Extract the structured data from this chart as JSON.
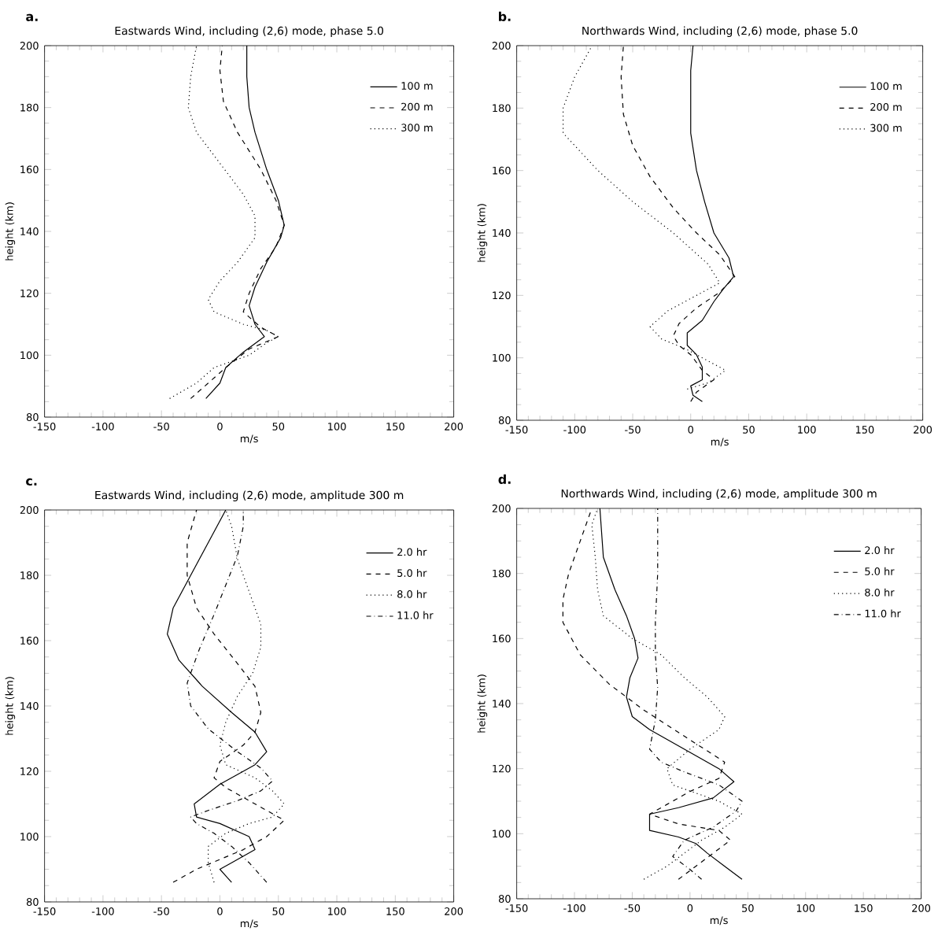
{
  "chart_data": [
    {
      "type": "line",
      "title": "Eastwards Wind, including (2,6) mode, phase 5.0",
      "xlabel": "m/s",
      "ylabel": "height (km)",
      "annotations": [
        "a."
      ],
      "xlim": [
        -150,
        200
      ],
      "ylim": [
        80,
        200
      ],
      "xticks": [
        -150,
        -100,
        -50,
        0,
        50,
        100,
        150,
        200
      ],
      "yticks": [
        80,
        100,
        120,
        140,
        160,
        180,
        200
      ],
      "legend": "top right",
      "marker": "none",
      "series": [
        {
          "name": "100 m",
          "color": "#000000",
          "line_style": "solid",
          "x": [
            -12,
            0,
            5,
            20,
            38,
            30,
            25,
            30,
            40,
            52,
            55,
            50,
            40,
            30,
            25,
            23,
            23
          ],
          "values": [
            86,
            91,
            96,
            101,
            106,
            110,
            116,
            122,
            130,
            138,
            142,
            150,
            160,
            172,
            180,
            190,
            200
          ]
        },
        {
          "name": "200 m",
          "color": "#000000",
          "line_style": "dashed",
          "x": [
            -25,
            -10,
            5,
            25,
            50,
            35,
            20,
            25,
            35,
            48,
            55,
            48,
            35,
            15,
            3,
            0,
            2
          ],
          "values": [
            86,
            91,
            96,
            102,
            106,
            109,
            114,
            120,
            128,
            135,
            142,
            150,
            160,
            172,
            182,
            192,
            200
          ]
        },
        {
          "name": "300 m",
          "color": "#000000",
          "line_style": "dotted",
          "x": [
            -43,
            -20,
            -5,
            25,
            40,
            50,
            40,
            20,
            -5,
            -10,
            0,
            15,
            30,
            30,
            20,
            0,
            -20,
            -27,
            -25,
            -20
          ],
          "values": [
            86,
            91,
            96,
            100,
            104,
            106,
            108,
            110,
            114,
            118,
            124,
            130,
            138,
            145,
            152,
            162,
            172,
            180,
            190,
            200
          ]
        }
      ]
    },
    {
      "type": "line",
      "title": "Northwards Wind, including (2,6) mode, phase 5.0",
      "xlabel": "m/s",
      "ylabel": "height (km)",
      "annotations": [
        "b."
      ],
      "xlim": [
        -150,
        200
      ],
      "ylim": [
        80,
        200
      ],
      "xticks": [
        -150,
        -100,
        -50,
        0,
        50,
        100,
        150,
        200
      ],
      "yticks": [
        80,
        100,
        120,
        140,
        160,
        180,
        200
      ],
      "legend": "top right",
      "marker": "none",
      "series": [
        {
          "name": "100 m",
          "color": "#000000",
          "line_style": "solid",
          "x": [
            10,
            2,
            0,
            10,
            10,
            5,
            -3,
            -3,
            10,
            20,
            28,
            37,
            33,
            20,
            12,
            5,
            0,
            0,
            2
          ],
          "values": [
            86,
            88,
            91,
            93,
            97,
            101,
            104,
            108,
            112,
            118,
            122,
            126,
            132,
            140,
            150,
            160,
            172,
            192,
            200
          ]
        },
        {
          "name": "200 m",
          "color": "#000000",
          "line_style": "dashed",
          "x": [
            0,
            5,
            20,
            10,
            0,
            -10,
            -15,
            -10,
            5,
            25,
            38,
            25,
            5,
            -15,
            -35,
            -50,
            -58,
            -60,
            -58
          ],
          "values": [
            86,
            89,
            93,
            96,
            101,
            104,
            107,
            111,
            116,
            121,
            126,
            133,
            140,
            148,
            158,
            168,
            178,
            190,
            200
          ]
        },
        {
          "name": "300 m",
          "color": "#000000",
          "line_style": "dotted",
          "x": [
            -3,
            15,
            30,
            10,
            -5,
            -25,
            -35,
            -20,
            0,
            25,
            15,
            -15,
            -50,
            -80,
            -110,
            -110,
            -100,
            -85
          ],
          "values": [
            90,
            92,
            96,
            100,
            103,
            106,
            110,
            115,
            119,
            124,
            130,
            140,
            150,
            160,
            172,
            180,
            190,
            200
          ]
        }
      ]
    },
    {
      "type": "line",
      "title": "Eastwards Wind, including (2,6) mode, amplitude 300 m",
      "xlabel": "m/s",
      "ylabel": "height (km)",
      "annotations": [
        "c."
      ],
      "xlim": [
        -150,
        200
      ],
      "ylim": [
        80,
        200
      ],
      "xticks": [
        -150,
        -100,
        -50,
        0,
        50,
        100,
        150,
        200
      ],
      "yticks": [
        80,
        100,
        120,
        140,
        160,
        180,
        200
      ],
      "legend": "top right",
      "marker": "none",
      "series": [
        {
          "name": "2.0 hr",
          "color": "#000000",
          "line_style": "solid",
          "x": [
            10,
            5,
            0,
            10,
            30,
            25,
            0,
            -20,
            -22,
            0,
            30,
            40,
            30,
            10,
            -15,
            -35,
            -45,
            -40,
            -25,
            -10,
            5
          ],
          "values": [
            86,
            88,
            90,
            92,
            96,
            100,
            104,
            106,
            110,
            116,
            122,
            126,
            132,
            138,
            146,
            154,
            162,
            170,
            180,
            190,
            200
          ]
        },
        {
          "name": "5.0 hr",
          "color": "#000000",
          "line_style": "dashed",
          "x": [
            -40,
            -20,
            0,
            20,
            40,
            55,
            40,
            20,
            5,
            -5,
            0,
            20,
            30,
            35,
            30,
            15,
            -5,
            -20,
            -28,
            -28,
            -20
          ],
          "values": [
            86,
            90,
            93,
            96,
            100,
            105,
            108,
            112,
            115,
            118,
            123,
            128,
            132,
            138,
            146,
            153,
            162,
            170,
            180,
            190,
            200
          ]
        },
        {
          "name": "8.0 hr",
          "color": "#000000",
          "line_style": "dotted",
          "x": [
            -5,
            -10,
            -10,
            5,
            25,
            45,
            55,
            45,
            30,
            5,
            0,
            5,
            15,
            28,
            35,
            35,
            25,
            15,
            10,
            5
          ],
          "values": [
            86,
            92,
            97,
            101,
            104,
            106,
            110,
            114,
            118,
            122,
            128,
            135,
            143,
            150,
            158,
            165,
            175,
            185,
            195,
            200
          ]
        },
        {
          "name": "11.0 hr",
          "color": "#000000",
          "line_style": "dashdot",
          "x": [
            40,
            25,
            10,
            -5,
            -20,
            -25,
            -10,
            15,
            35,
            45,
            35,
            15,
            -10,
            -25,
            -28,
            -18,
            -5,
            5,
            15,
            20,
            20
          ],
          "values": [
            86,
            92,
            97,
            101,
            104,
            106,
            108,
            111,
            114,
            117,
            121,
            126,
            133,
            140,
            147,
            157,
            168,
            177,
            186,
            195,
            200
          ]
        }
      ]
    },
    {
      "type": "line",
      "title": "Northwards Wind, including (2,6) mode, amplitude 300 m",
      "xlabel": "m/s",
      "ylabel": "height (km)",
      "annotations": [
        "d."
      ],
      "xlim": [
        -150,
        200
      ],
      "ylim": [
        80,
        200
      ],
      "xticks": [
        -150,
        -100,
        -50,
        0,
        50,
        100,
        150,
        200
      ],
      "yticks": [
        80,
        100,
        120,
        140,
        160,
        180,
        200
      ],
      "legend": "top right",
      "marker": "none",
      "series": [
        {
          "name": "2.0 hr",
          "color": "#000000",
          "line_style": "solid",
          "x": [
            45,
            30,
            15,
            5,
            -10,
            -35,
            -35,
            -10,
            20,
            38,
            25,
            0,
            -35,
            -50,
            -55,
            -52,
            -45,
            -48,
            -55,
            -65,
            -75,
            -78
          ],
          "values": [
            86,
            90,
            94,
            97,
            99,
            101,
            106,
            108,
            111,
            116,
            120,
            125,
            132,
            136,
            142,
            148,
            154,
            160,
            167,
            175,
            185,
            200
          ]
        },
        {
          "name": "5.0 hr",
          "color": "#000000",
          "line_style": "dashed",
          "x": [
            -10,
            5,
            20,
            35,
            25,
            -10,
            -35,
            -20,
            0,
            25,
            30,
            -5,
            -40,
            -70,
            -95,
            -110,
            -110,
            -105,
            -95,
            -85
          ],
          "values": [
            86,
            90,
            94,
            98,
            101,
            103,
            106,
            109,
            113,
            117,
            122,
            130,
            138,
            146,
            155,
            165,
            172,
            180,
            190,
            200
          ]
        },
        {
          "name": "8.0 hr",
          "color": "#000000",
          "line_style": "dotted",
          "x": [
            -40,
            -20,
            -5,
            10,
            30,
            45,
            25,
            -15,
            -20,
            0,
            25,
            30,
            15,
            -5,
            -25,
            -50,
            -75,
            -80,
            -82,
            -85,
            -80
          ],
          "values": [
            86,
            90,
            94,
            98,
            102,
            106,
            110,
            115,
            120,
            126,
            132,
            136,
            142,
            148,
            155,
            160,
            167,
            175,
            185,
            195,
            200
          ]
        },
        {
          "name": "11.0 hr",
          "color": "#000000",
          "line_style": "dashdot",
          "x": [
            10,
            0,
            -15,
            -5,
            20,
            40,
            45,
            25,
            -5,
            -25,
            -35,
            -30,
            -28,
            -30,
            -30,
            -28,
            -28
          ],
          "values": [
            86,
            89,
            93,
            98,
            102,
            107,
            110,
            115,
            119,
            122,
            126,
            135,
            145,
            155,
            165,
            180,
            200
          ]
        }
      ]
    }
  ]
}
